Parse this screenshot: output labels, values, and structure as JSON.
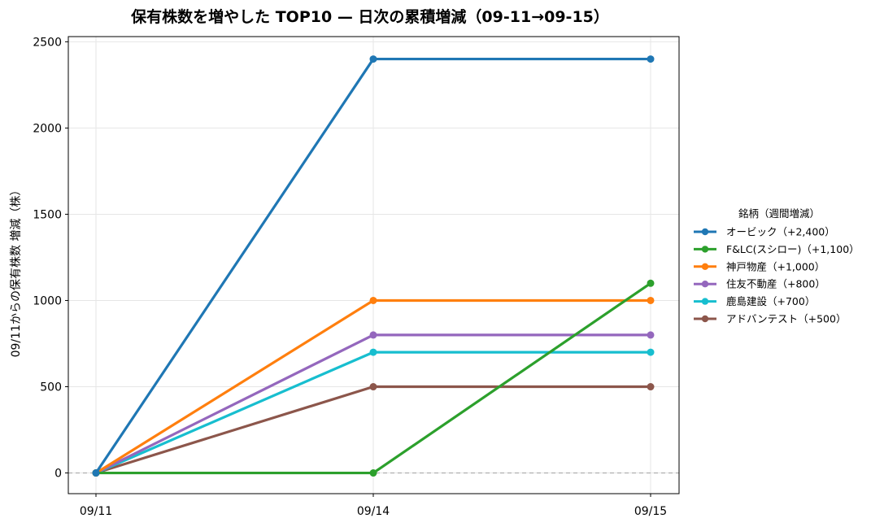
{
  "chart_data": {
    "type": "line",
    "title": "保有株数を増やした TOP10 — 日次の累積増減（09-11→09-15）",
    "xlabel": "",
    "ylabel": "09/11からの保有株数 増減（株）",
    "categories": [
      "09/11",
      "09/14",
      "09/15"
    ],
    "ylim": [
      -120,
      2530
    ],
    "yticks": [
      0,
      500,
      1000,
      1500,
      2000,
      2500
    ],
    "grid": true,
    "zero_line": "dashed-gray",
    "legend": {
      "title": "銘柄（週間増減）",
      "placement": "right-outside"
    },
    "series": [
      {
        "name": "オービック（+2,400）",
        "color": "#1f77b4",
        "values": [
          0,
          2400,
          2400
        ]
      },
      {
        "name": "F&LC(スシロー)（+1,100）",
        "color": "#2ca02c",
        "values": [
          0,
          0,
          1100
        ]
      },
      {
        "name": "神戸物産（+1,000）",
        "color": "#ff7f0e",
        "values": [
          0,
          1000,
          1000
        ]
      },
      {
        "name": "住友不動産（+800）",
        "color": "#9467bd",
        "values": [
          0,
          800,
          800
        ]
      },
      {
        "name": "鹿島建設（+700）",
        "color": "#17becf",
        "values": [
          0,
          700,
          700
        ]
      },
      {
        "name": "アドバンテスト（+500）",
        "color": "#8c564b",
        "values": [
          0,
          500,
          500
        ]
      }
    ]
  }
}
